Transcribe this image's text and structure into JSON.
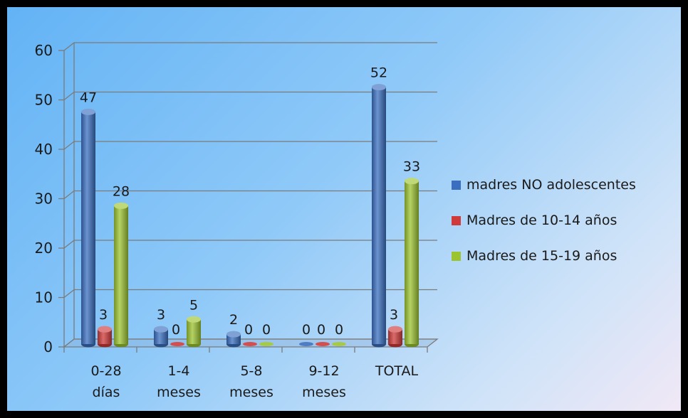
{
  "chart_data": {
    "type": "bar",
    "categories": [
      [
        "0-28",
        "días"
      ],
      [
        "1-4",
        "meses"
      ],
      [
        "5-8",
        "meses"
      ],
      [
        "9-12",
        "meses"
      ],
      [
        "TOTAL"
      ]
    ],
    "series": [
      {
        "name": "madres NO adolescentes",
        "values": [
          47,
          3,
          2,
          0,
          52
        ],
        "color": "#3a6fbf"
      },
      {
        "name": "Madres de 10-14 años",
        "values": [
          3,
          0,
          0,
          0,
          3
        ],
        "color": "#cf3a3a"
      },
      {
        "name": "Madres de 15-19 años",
        "values": [
          28,
          5,
          0,
          0,
          33
        ],
        "color": "#9cc431"
      }
    ],
    "ylim": [
      0,
      60
    ],
    "yticks": [
      "0",
      "10",
      "20",
      "30",
      "40",
      "50",
      "60"
    ],
    "grid": true,
    "legend_position": "right",
    "style": "3d-cylinder"
  }
}
